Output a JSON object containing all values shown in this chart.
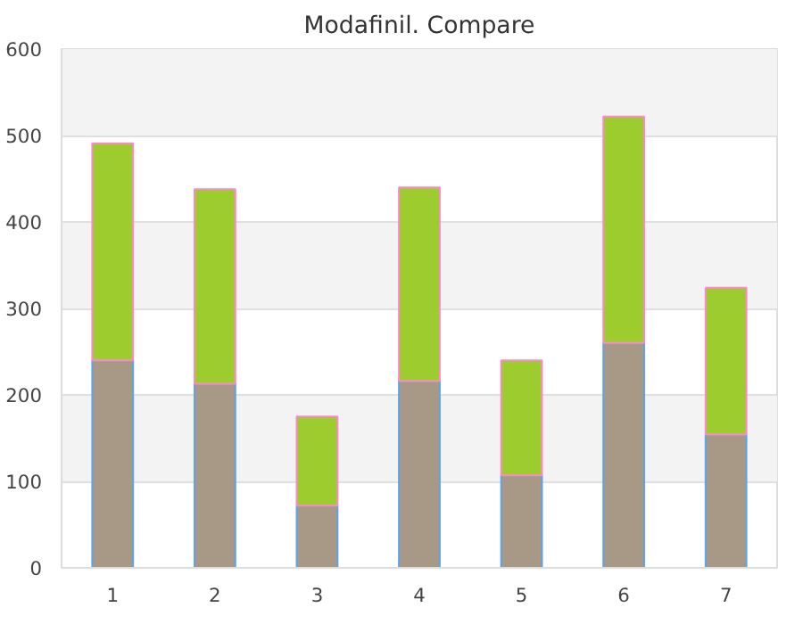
{
  "chart_data": {
    "type": "bar",
    "title": "Modafinil. Compare",
    "stacked": true,
    "categories": [
      "1",
      "2",
      "3",
      "4",
      "5",
      "6",
      "7"
    ],
    "series": [
      {
        "color": "#a89886",
        "values": [
          240,
          213,
          72,
          216,
          107,
          260,
          154
        ]
      },
      {
        "color": "#9ccc2e",
        "values": [
          251,
          225,
          103,
          224,
          133,
          262,
          170
        ]
      }
    ],
    "ylim": [
      0,
      600
    ],
    "yticks": [
      0,
      100,
      200,
      300,
      400,
      500,
      600
    ],
    "grid": "y"
  }
}
